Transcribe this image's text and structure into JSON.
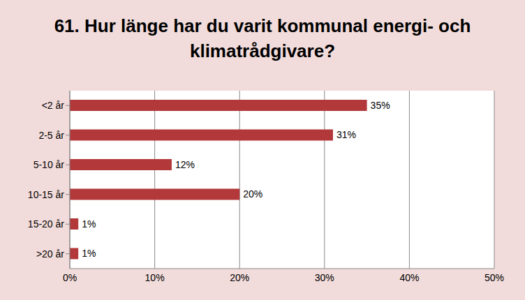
{
  "chart_data": {
    "type": "bar",
    "title": "61. Hur länge har du varit kommunal energi- och klimatrådgivare?",
    "orientation": "horizontal",
    "categories": [
      "<2 år",
      "2-5 år",
      "5-10 år",
      "10-15 år",
      "15-20 år",
      ">20 år"
    ],
    "values": [
      35,
      31,
      12,
      20,
      1,
      1
    ],
    "value_labels": [
      "35%",
      "31%",
      "12%",
      "20%",
      "1%",
      "1%"
    ],
    "data_labels": true,
    "color": "#b2383a",
    "xlim": [
      0,
      50
    ],
    "xticks": [
      {
        "value": 0,
        "label": "0%"
      },
      {
        "value": 10,
        "label": "10%"
      },
      {
        "value": 20,
        "label": "20%"
      },
      {
        "value": 30,
        "label": "30%"
      },
      {
        "value": 40,
        "label": "40%"
      },
      {
        "value": 50,
        "label": "50%"
      }
    ],
    "grid": true
  }
}
